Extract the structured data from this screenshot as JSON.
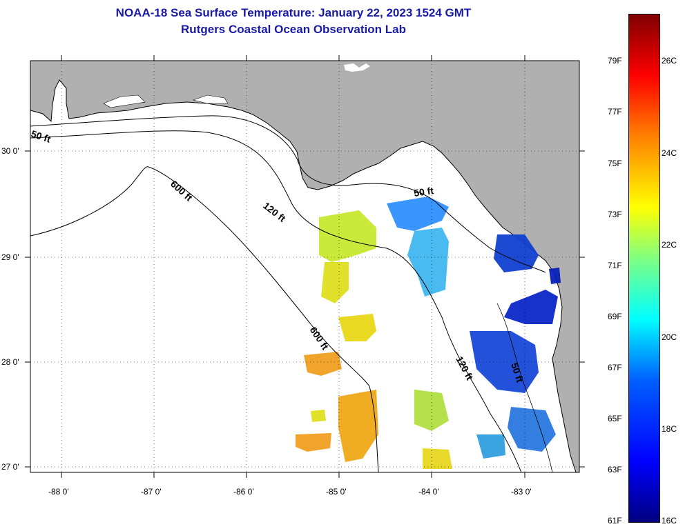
{
  "title": "NOAA-18 Sea Surface Temperature:  January 22, 2023 1524 GMT",
  "subtitle": "Rutgers Coastal Ocean Observation Lab",
  "lat_labels": [
    "30 0'",
    "29 0'",
    "28 0'",
    "27 0'"
  ],
  "lon_labels": [
    "-88 0'",
    "-87 0'",
    "-86 0'",
    "-85 0'",
    "-84 0'",
    "-83 0'"
  ],
  "contours": {
    "c50_a": "50 ft",
    "c600_a": "600 ft",
    "c120_a": "120 ft",
    "c50_b": "50 ft",
    "c600_b": "600 ft",
    "c120_b": "120 ft",
    "c50_c": "50 ft"
  },
  "colorbar": {
    "fahrenheit": [
      "79F",
      "77F",
      "75F",
      "73F",
      "71F",
      "69F",
      "67F",
      "65F",
      "63F",
      "61F"
    ],
    "celsius": [
      "26C",
      "24C",
      "22C",
      "20C",
      "18C",
      "16C"
    ]
  },
  "colors": {
    "title": "#1a1aa8",
    "land": "#b0b0b0",
    "water": "#ffffff"
  }
}
